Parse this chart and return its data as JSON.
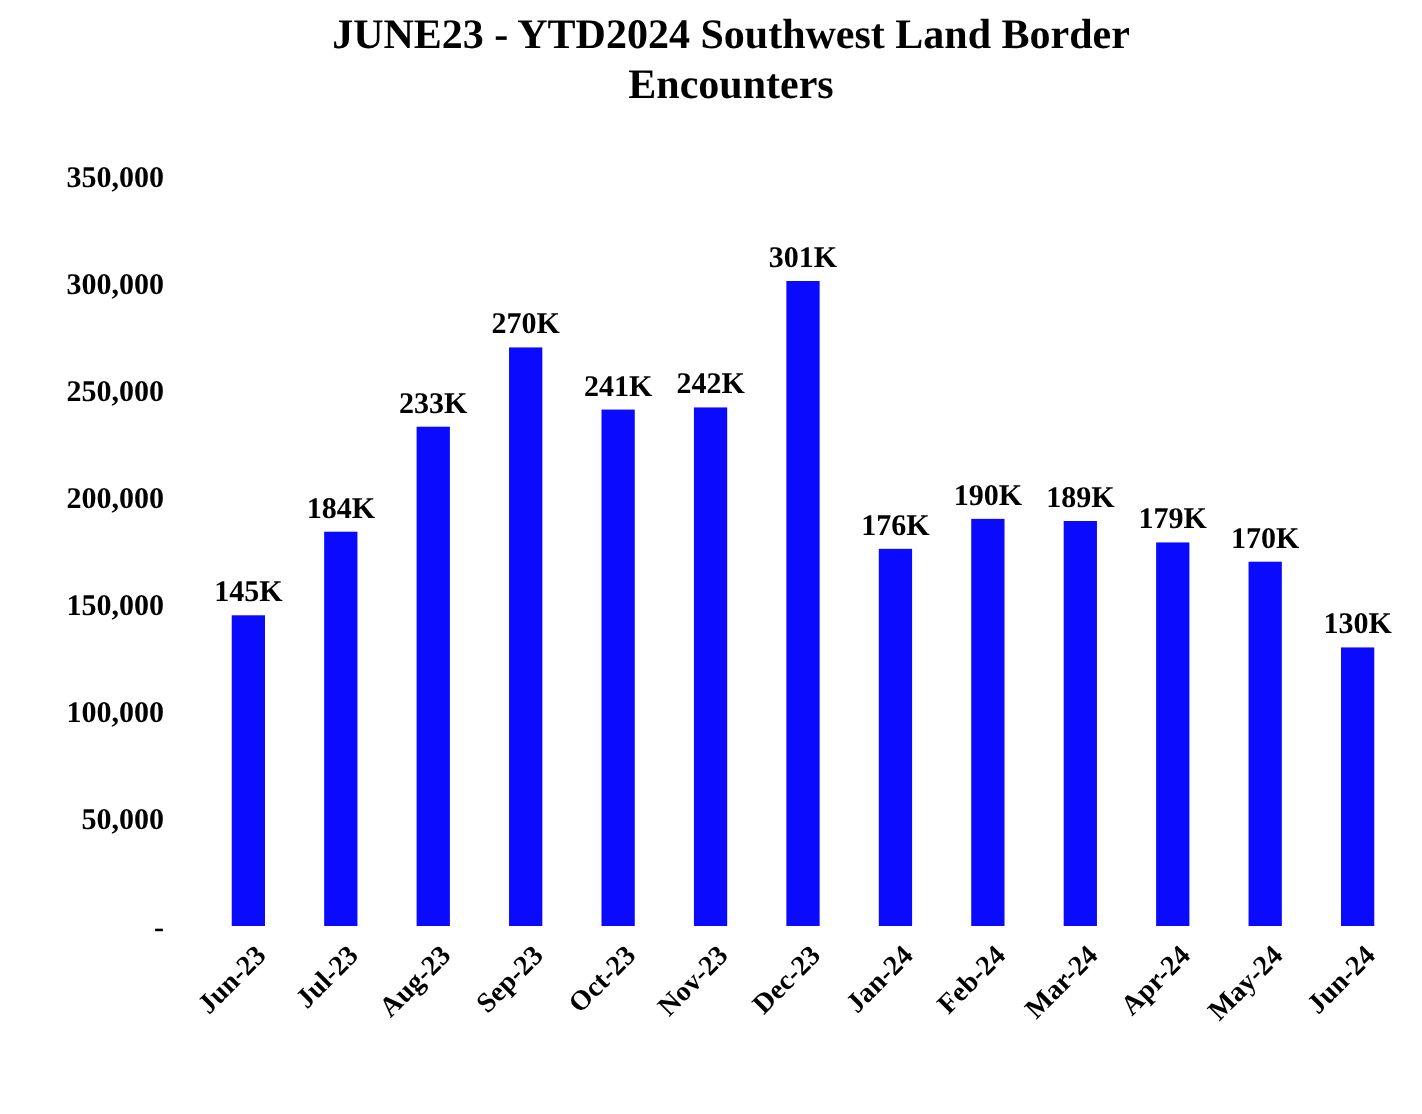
{
  "chart_data": {
    "type": "bar",
    "title": "JUNE23 - YTD2024 Southwest Land Border Encounters",
    "categories": [
      "Jun-23",
      "Jul-23",
      "Aug-23",
      "Sep-23",
      "Oct-23",
      "Nov-23",
      "Dec-23",
      "Jan-24",
      "Feb-24",
      "Mar-24",
      "Apr-24",
      "May-24",
      "Jun-24"
    ],
    "values": [
      145000,
      184000,
      233000,
      270000,
      241000,
      242000,
      301000,
      176000,
      190000,
      189000,
      179000,
      170000,
      130000
    ],
    "value_labels": [
      "145K",
      "184K",
      "233K",
      "270K",
      "241K",
      "242K",
      "301K",
      "176K",
      "190K",
      "189K",
      "179K",
      "170K",
      "130K"
    ],
    "color": "#0a0aff",
    "ylim": [
      0,
      350000
    ],
    "yticks": [
      {
        "value": 0,
        "label": "-"
      },
      {
        "value": 50000,
        "label": "50,000"
      },
      {
        "value": 100000,
        "label": "100,000"
      },
      {
        "value": 150000,
        "label": "150,000"
      },
      {
        "value": 200000,
        "label": "200,000"
      },
      {
        "value": 250000,
        "label": "250,000"
      },
      {
        "value": 300000,
        "label": "300,000"
      },
      {
        "value": 350000,
        "label": "350,000"
      }
    ],
    "grid": false
  }
}
